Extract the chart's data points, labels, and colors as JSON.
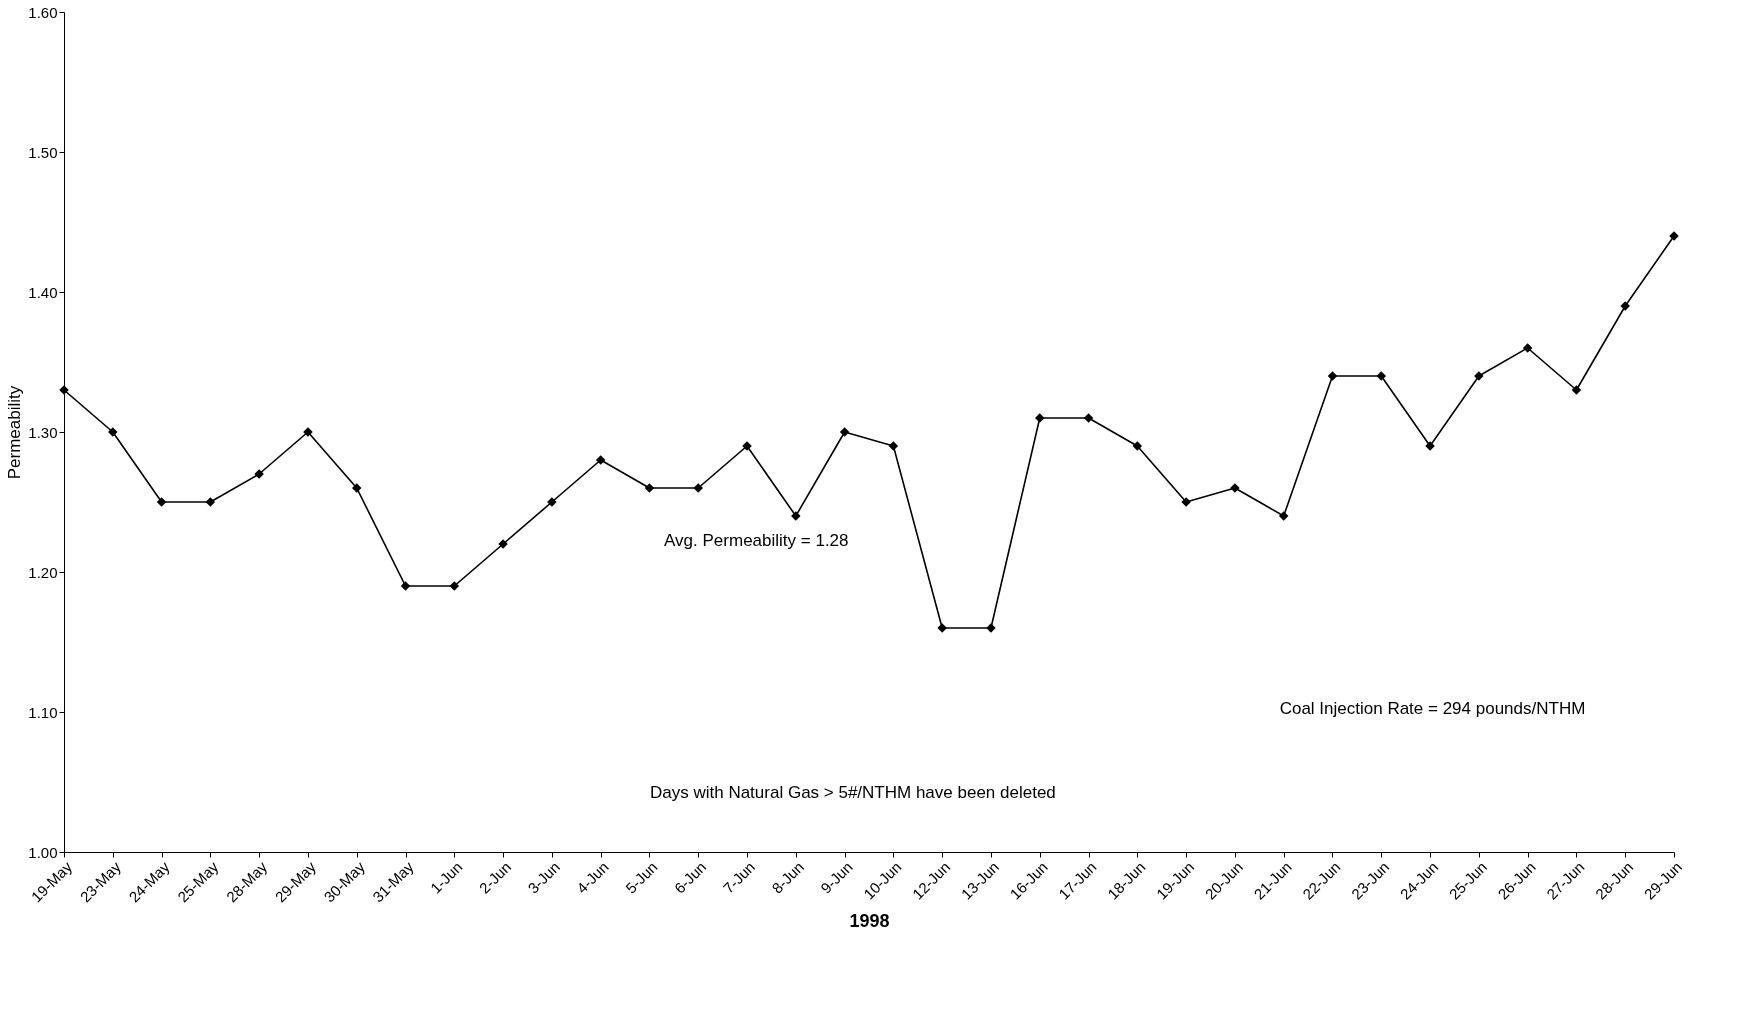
{
  "chart_data": {
    "type": "line",
    "xlabel": "1998",
    "ylabel": "Permeability",
    "categories": [
      "19-May",
      "23-May",
      "24-May",
      "25-May",
      "28-May",
      "29-May",
      "30-May",
      "31-May",
      "1-Jun",
      "2-Jun",
      "3-Jun",
      "4-Jun",
      "5-Jun",
      "6-Jun",
      "7-Jun",
      "8-Jun",
      "9-Jun",
      "10-Jun",
      "12-Jun",
      "13-Jun",
      "16-Jun",
      "17-Jun",
      "18-Jun",
      "19-Jun",
      "20-Jun",
      "21-Jun",
      "22-Jun",
      "23-Jun",
      "24-Jun",
      "25-Jun",
      "26-Jun",
      "27-Jun",
      "28-Jun",
      "29-Jun"
    ],
    "series": [
      {
        "color": "#000000",
        "values": [
          1.33,
          1.3,
          1.25,
          1.25,
          1.27,
          1.3,
          1.26,
          1.19,
          1.19,
          1.22,
          1.25,
          1.28,
          1.26,
          1.26,
          1.29,
          1.24,
          1.3,
          1.29,
          1.16,
          1.16,
          1.31,
          1.31,
          1.29,
          1.25,
          1.26,
          1.24,
          1.34,
          1.34,
          1.29,
          1.34,
          1.36,
          1.33,
          1.39,
          1.44
        ]
      }
    ],
    "ylim": [
      1.0,
      1.6
    ],
    "yticks": [
      {
        "value": 1.0,
        "label": "1.00"
      },
      {
        "value": 1.1,
        "label": "1.10"
      },
      {
        "value": 1.2,
        "label": "1.20"
      },
      {
        "value": 1.3,
        "label": "1.30"
      },
      {
        "value": 1.4,
        "label": "1.40"
      },
      {
        "value": 1.5,
        "label": "1.50"
      },
      {
        "value": 1.6,
        "label": "1.60"
      }
    ],
    "marker": "diamond",
    "line_style": "solid",
    "grid": false,
    "annotations": [
      "Avg. Permeability = 1.28",
      "Coal Injection Rate = 294 pounds/NTHM",
      "Days with Natural Gas > 5#/NTHM have been deleted"
    ]
  }
}
